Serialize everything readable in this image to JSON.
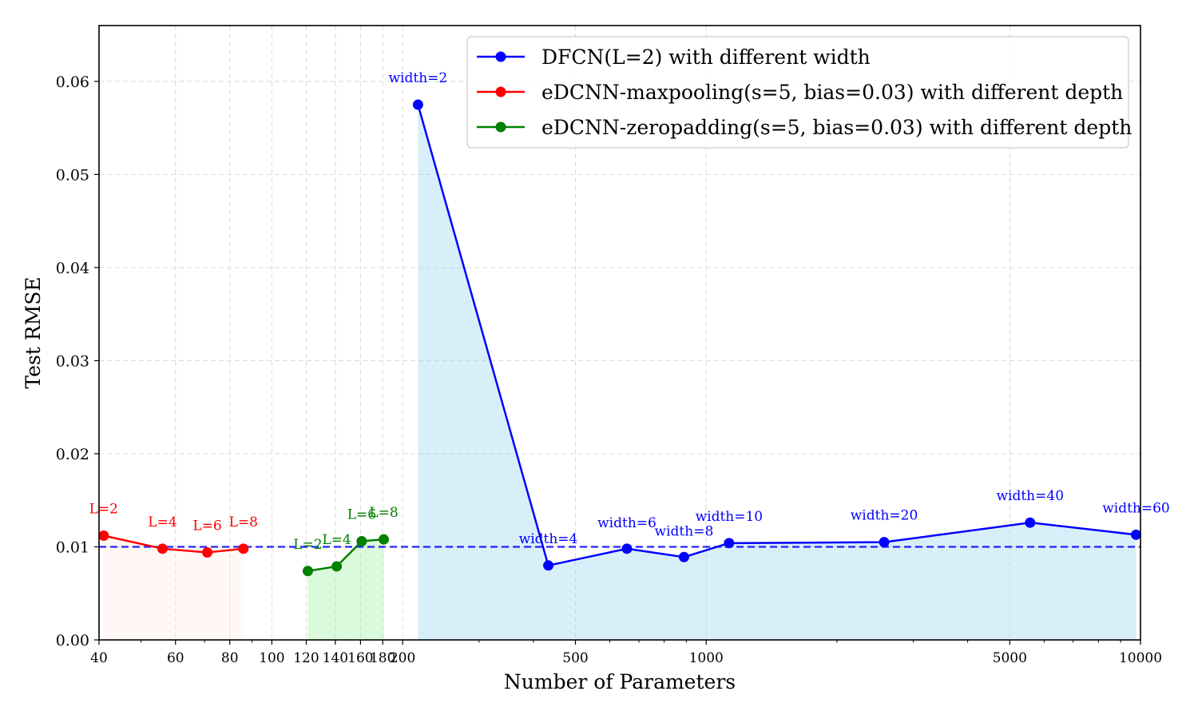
{
  "chart_data": {
    "type": "line",
    "xscale": "log",
    "xlim": [
      40,
      10000
    ],
    "ylim": [
      0,
      0.066
    ],
    "xlabel": "Number of Parameters",
    "ylabel": "Test RMSE",
    "grid": true,
    "legend_position": "top-right",
    "x_ticks": [
      40,
      60,
      80,
      100,
      120,
      140,
      160,
      180,
      200,
      500,
      1000,
      5000,
      10000
    ],
    "x_tick_labels": [
      "40",
      "60",
      "80",
      "100",
      "120",
      "140",
      "160",
      "180",
      "200",
      "500",
      "1000",
      "5000",
      "10000"
    ],
    "y_ticks": [
      0.0,
      0.01,
      0.02,
      0.03,
      0.04,
      0.05,
      0.06
    ],
    "y_tick_labels": [
      "0.00",
      "0.01",
      "0.02",
      "0.03",
      "0.04",
      "0.05",
      "0.06"
    ],
    "reference_line": {
      "y": 0.01,
      "color": "#0000ff",
      "style": "dashed"
    },
    "series": [
      {
        "name": "DFCN(L=2) with different width",
        "color": "#0000ff",
        "fill": "#87ceeb",
        "x": [
          217,
          433,
          657,
          889,
          1129,
          2569,
          5569,
          9769
        ],
        "y": [
          0.0575,
          0.008,
          0.0098,
          0.0089,
          0.0104,
          0.0105,
          0.0126,
          0.0113
        ],
        "labels": [
          "width=2",
          "width=4",
          "width=6",
          "width=8",
          "width=10",
          "width=20",
          "width=40",
          "width=60"
        ]
      },
      {
        "name": "eDCNN-maxpooling(s=5, bias=0.03) with different depth",
        "color": "#ff0000",
        "fill": "#ffe4e1",
        "x": [
          41,
          56,
          71,
          86
        ],
        "y": [
          0.0112,
          0.0098,
          0.0094,
          0.0098
        ],
        "labels": [
          "L=2",
          "L=4",
          "L=6",
          "L=8"
        ]
      },
      {
        "name": "eDCNN-zeropadding(s=5, bias=0.03) with different depth",
        "color": "#008000",
        "fill": "#90ee90",
        "x": [
          121,
          141,
          161,
          181
        ],
        "y": [
          0.0074,
          0.0079,
          0.0106,
          0.0108
        ],
        "labels": [
          "L=2",
          "L=4",
          "L=6",
          "L=8"
        ]
      }
    ]
  }
}
